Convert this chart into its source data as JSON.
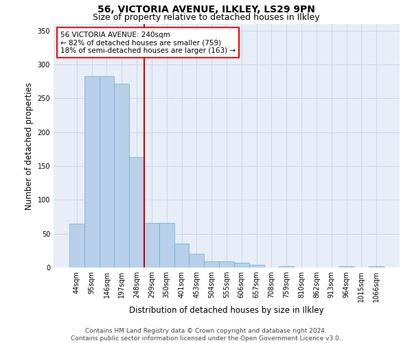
{
  "title": "56, VICTORIA AVENUE, ILKLEY, LS29 9PN",
  "subtitle": "Size of property relative to detached houses in Ilkley",
  "xlabel": "Distribution of detached houses by size in Ilkley",
  "ylabel": "Number of detached properties",
  "footnote1": "Contains HM Land Registry data © Crown copyright and database right 2024.",
  "footnote2": "Contains public sector information licensed under the Open Government Licence v3.0.",
  "annotation_line1": "56 VICTORIA AVENUE: 240sqm",
  "annotation_line2": "← 82% of detached houses are smaller (759)",
  "annotation_line3": "18% of semi-detached houses are larger (163) →",
  "bar_color": "#b8d0ea",
  "bar_edge_color": "#6aaad4",
  "vline_color": "#cc0000",
  "vline_x": 4.5,
  "categories": [
    "44sqm",
    "95sqm",
    "146sqm",
    "197sqm",
    "248sqm",
    "299sqm",
    "350sqm",
    "401sqm",
    "453sqm",
    "504sqm",
    "555sqm",
    "606sqm",
    "657sqm",
    "708sqm",
    "759sqm",
    "810sqm",
    "862sqm",
    "913sqm",
    "964sqm",
    "1015sqm",
    "1066sqm"
  ],
  "values": [
    65,
    283,
    283,
    272,
    163,
    66,
    66,
    36,
    20,
    9,
    9,
    7,
    4,
    0,
    2,
    0,
    0,
    0,
    2,
    0,
    2
  ],
  "ylim": [
    0,
    360
  ],
  "yticks": [
    0,
    50,
    100,
    150,
    200,
    250,
    300,
    350
  ],
  "grid_color": "#c8d4e8",
  "bg_color": "#e8eef8",
  "title_fontsize": 10,
  "subtitle_fontsize": 9,
  "axis_label_fontsize": 8.5,
  "tick_fontsize": 7,
  "annotation_fontsize": 7.5,
  "footnote_fontsize": 6.5
}
